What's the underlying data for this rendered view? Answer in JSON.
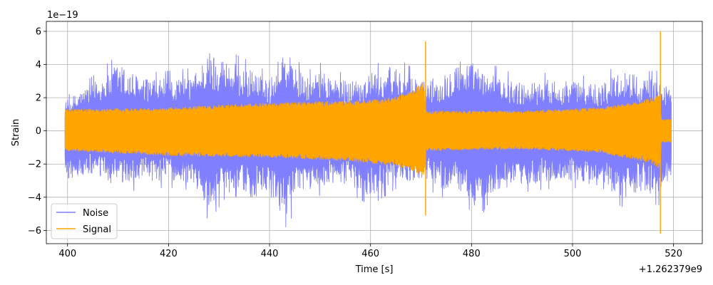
{
  "chart_data": {
    "type": "line",
    "title": "",
    "xlabel": "Time [s]",
    "ylabel": "Strain",
    "x_offset_label": "+1.262379e9",
    "y_scale_label": "1e−19",
    "xlim": [
      395.8,
      525.7
    ],
    "ylim": [
      -6.8,
      6.6
    ],
    "xticks": [
      400,
      420,
      440,
      460,
      480,
      500,
      520
    ],
    "xtick_labels": [
      "400",
      "420",
      "440",
      "460",
      "480",
      "500",
      "520"
    ],
    "yticks": [
      -6,
      -4,
      -2,
      0,
      2,
      4,
      6
    ],
    "ytick_labels": [
      "−6",
      "−4",
      "−2",
      "0",
      "2",
      "4",
      "6"
    ],
    "grid": true,
    "legend_placement": "lower-left",
    "series": [
      {
        "name": "Noise",
        "color": "#7f7fff",
        "x_range": [
          399.5,
          519.6
        ],
        "envelope": [
          {
            "x": 399.5,
            "lo": -3.3,
            "hi": 2.0
          },
          {
            "x": 405,
            "lo": -3.0,
            "hi": 3.3
          },
          {
            "x": 410,
            "lo": -3.8,
            "hi": 4.6
          },
          {
            "x": 415,
            "lo": -3.5,
            "hi": 3.5
          },
          {
            "x": 420,
            "lo": -3.4,
            "hi": 3.6
          },
          {
            "x": 425,
            "lo": -3.6,
            "hi": 3.8
          },
          {
            "x": 428,
            "lo": -5.5,
            "hi": 5.4
          },
          {
            "x": 432,
            "lo": -3.7,
            "hi": 4.8
          },
          {
            "x": 436,
            "lo": -4.5,
            "hi": 4.2
          },
          {
            "x": 440,
            "lo": -4.6,
            "hi": 3.5
          },
          {
            "x": 443,
            "lo": -5.9,
            "hi": 5.7
          },
          {
            "x": 447,
            "lo": -4.0,
            "hi": 3.5
          },
          {
            "x": 450,
            "lo": -3.9,
            "hi": 4.1
          },
          {
            "x": 455,
            "lo": -3.6,
            "hi": 3.4
          },
          {
            "x": 460,
            "lo": -4.5,
            "hi": 3.9
          },
          {
            "x": 465,
            "lo": -3.5,
            "hi": 4.5
          },
          {
            "x": 470,
            "lo": -3.3,
            "hi": 3.4
          },
          {
            "x": 474,
            "lo": -4.0,
            "hi": 3.7
          },
          {
            "x": 477,
            "lo": -3.8,
            "hi": 4.9
          },
          {
            "x": 480,
            "lo": -4.9,
            "hi": 4.7
          },
          {
            "x": 482,
            "lo": -5.9,
            "hi": 4.0
          },
          {
            "x": 485,
            "lo": -4.0,
            "hi": 3.9
          },
          {
            "x": 490,
            "lo": -3.7,
            "hi": 3.2
          },
          {
            "x": 495,
            "lo": -3.5,
            "hi": 3.5
          },
          {
            "x": 500,
            "lo": -3.4,
            "hi": 3.4
          },
          {
            "x": 505,
            "lo": -3.8,
            "hi": 3.2
          },
          {
            "x": 510,
            "lo": -4.6,
            "hi": 4.2
          },
          {
            "x": 514,
            "lo": -4.1,
            "hi": 3.6
          },
          {
            "x": 517,
            "lo": -4.5,
            "hi": 3.6
          },
          {
            "x": 519.6,
            "lo": -3.4,
            "hi": 2.9
          }
        ]
      },
      {
        "name": "Signal",
        "color": "#ffa500",
        "x_range": [
          399.5,
          519.6
        ],
        "envelope": [
          {
            "x": 399.5,
            "lo": -1.2,
            "hi": 1.3
          },
          {
            "x": 420,
            "lo": -1.5,
            "hi": 1.4
          },
          {
            "x": 440,
            "lo": -1.6,
            "hi": 1.7
          },
          {
            "x": 455,
            "lo": -1.8,
            "hi": 1.8
          },
          {
            "x": 462,
            "lo": -2.0,
            "hi": 1.9
          },
          {
            "x": 466,
            "lo": -2.2,
            "hi": 2.2
          },
          {
            "x": 469,
            "lo": -2.5,
            "hi": 2.6
          },
          {
            "x": 470.5,
            "lo": -2.8,
            "hi": 3.0
          },
          {
            "x": 471.0,
            "lo": -1.2,
            "hi": 1.2
          },
          {
            "x": 490,
            "lo": -1.1,
            "hi": 1.2
          },
          {
            "x": 505,
            "lo": -1.3,
            "hi": 1.4
          },
          {
            "x": 512,
            "lo": -1.7,
            "hi": 1.7
          },
          {
            "x": 516,
            "lo": -2.0,
            "hi": 2.0
          },
          {
            "x": 517.3,
            "lo": -2.4,
            "hi": 2.2
          },
          {
            "x": 517.6,
            "lo": -0.7,
            "hi": 0.7
          },
          {
            "x": 519.6,
            "lo": -0.7,
            "hi": 0.7
          }
        ],
        "spikes": [
          {
            "x": 470.9,
            "lo": -5.1,
            "hi": 5.4
          },
          {
            "x": 517.4,
            "lo": -6.2,
            "hi": 6.0
          }
        ]
      }
    ]
  }
}
